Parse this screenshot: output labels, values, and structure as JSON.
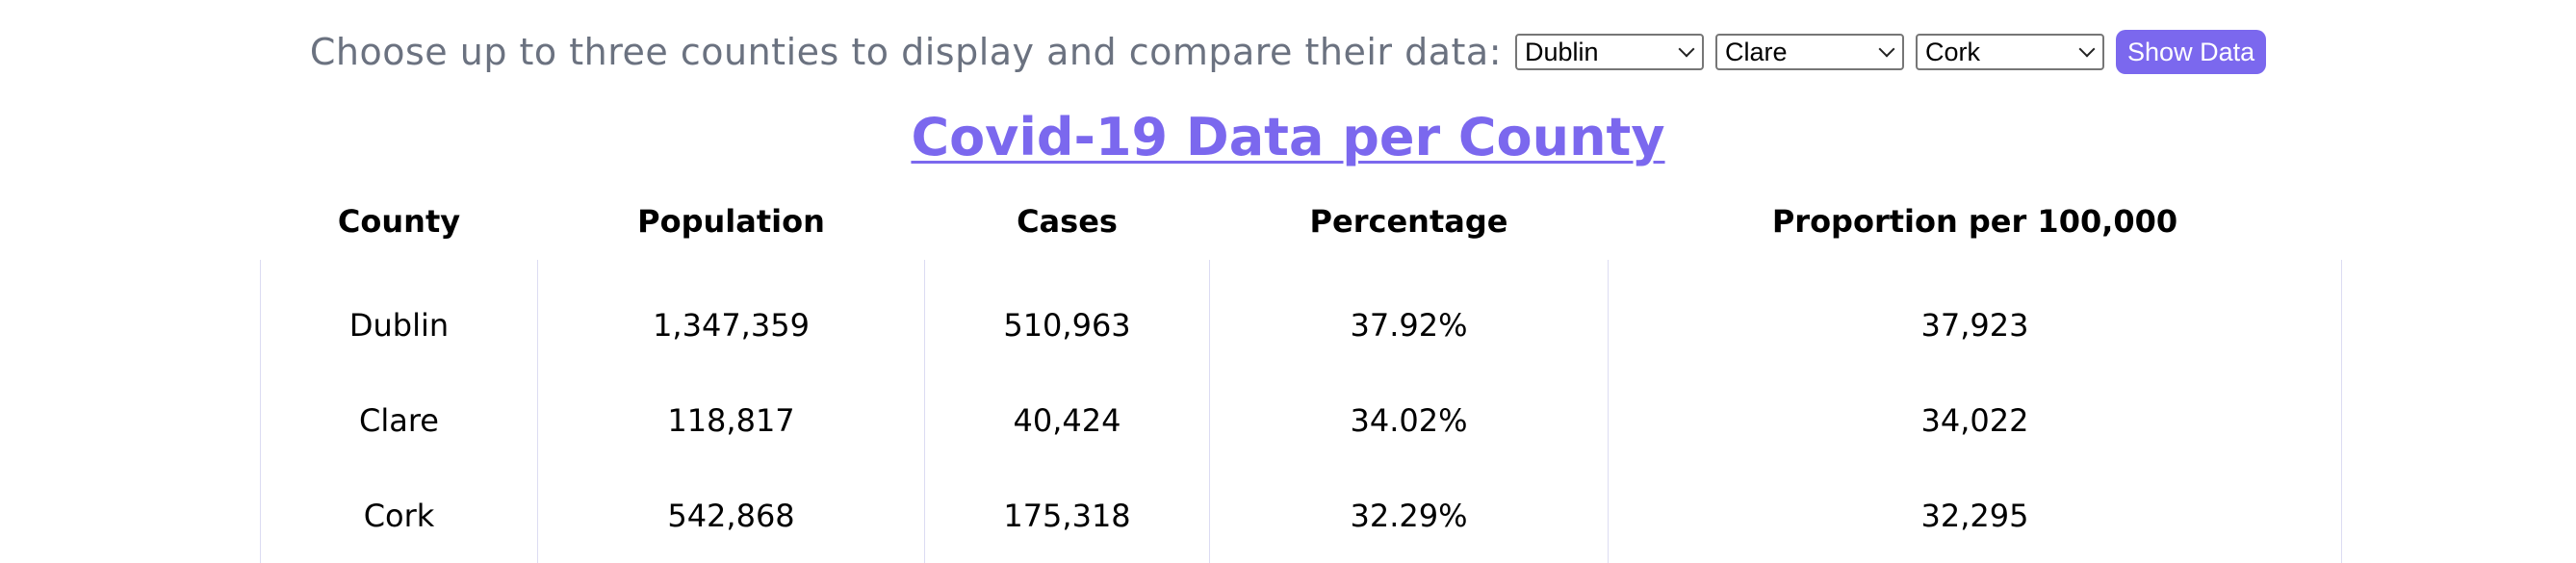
{
  "controls": {
    "prompt": "Choose up to three counties to display and compare their data:",
    "selects": [
      {
        "value": "Dublin"
      },
      {
        "value": "Clare"
      },
      {
        "value": "Cork"
      }
    ],
    "show_button": "Show Data"
  },
  "title": "Covid-19 Data per County",
  "table": {
    "headers": [
      "County",
      "Population",
      "Cases",
      "Percentage",
      "Proportion per 100,000"
    ],
    "rows": [
      [
        "Dublin",
        "1,347,359",
        "510,963",
        "37.92%",
        "37,923"
      ],
      [
        "Clare",
        "118,817",
        "40,424",
        "34.02%",
        "34,022"
      ],
      [
        "Cork",
        "542,868",
        "175,318",
        "32.29%",
        "32,295"
      ]
    ]
  },
  "colors": {
    "accent": "#7b68ee",
    "prompt_text": "#6b7280",
    "column_border": "#dcdcf2"
  }
}
